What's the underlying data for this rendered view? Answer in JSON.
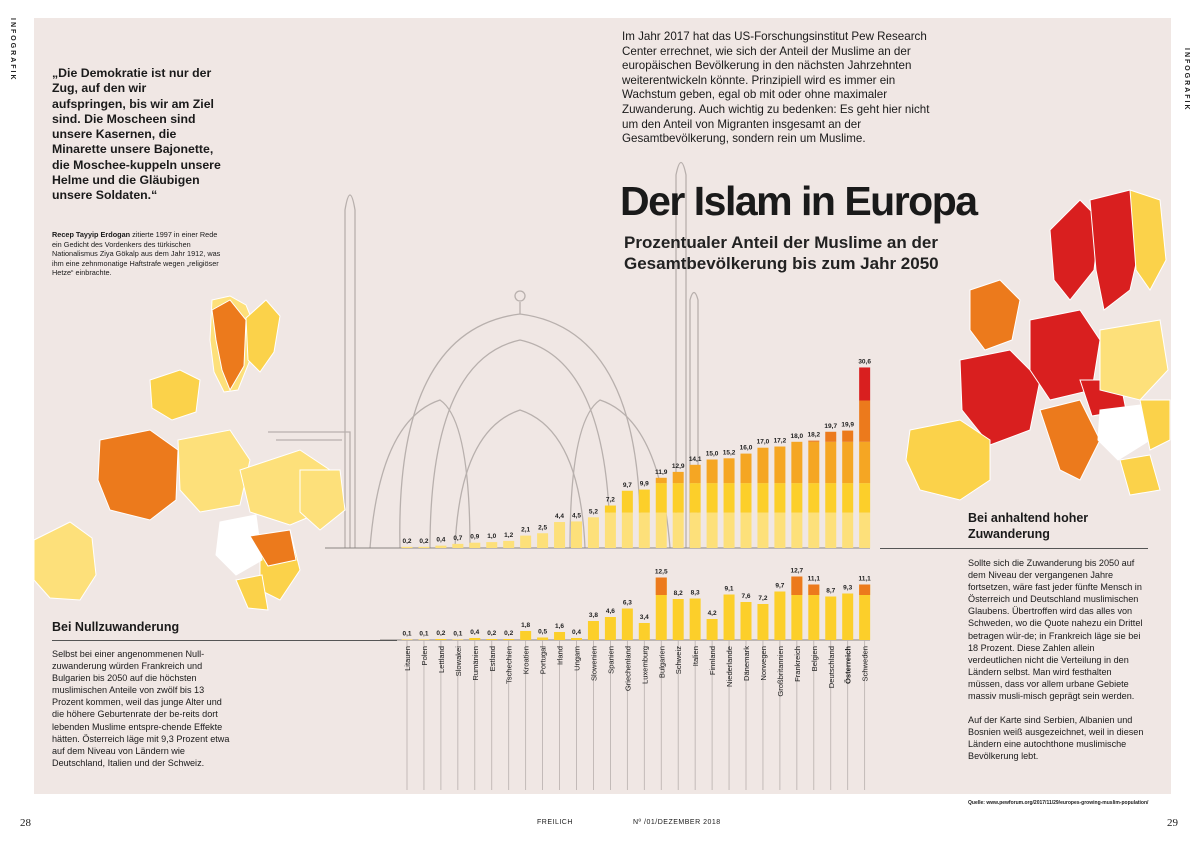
{
  "side_label": "INFOGRAFIK",
  "quote": "„Die Demokratie ist nur der Zug, auf den wir aufspringen, bis wir am Ziel sind. Die Moscheen sind unsere Kasernen, die Minarette unsere Bajonette, die Moschee-kuppeln unsere Helme und die Gläubigen unsere Soldaten.“",
  "quote_source_name": "Recep Tayyip Erdogan",
  "quote_source_text": " zitierte 1997 in einer Rede ein Gedicht des Vordenkers des türkischen Nationalismus Ziya Gökalp aus dem Jahr 1912, was ihm eine zehnmonatige Haftstrafe wegen „religiöser Hetze“ einbrachte.",
  "intro": "Im Jahr 2017 hat das US-Forschungsinstitut Pew Research Center errechnet, wie sich der Anteil der Muslime an der europäischen Bevölkerung in den nächsten Jahrzehnten weiterentwickeln könnte. Prinzipiell wird es immer ein Wachstum geben, egal ob mit oder ohne maximaler Zuwanderung. Auch wichtig zu bedenken: Es geht hier nicht um den Anteil von Migranten insgesamt an der Gesamtbevölkerung, sondern rein um Muslime.",
  "title": "Der Islam in Europa",
  "subtitle": "Prozentualer Anteil der Muslime an der Gesamtbevölkerung bis zum Jahr 2050",
  "section_zero": {
    "heading": "Bei Nullzuwanderung",
    "text": "Selbst bei einer angenommenen Null-zuwanderung würden Frankreich und Bulgarien bis 2050 auf die höchsten muslimischen Anteile von zwölf bis 13 Prozent kommen, weil das junge Alter und die höhere Geburtenrate der be-reits dort lebenden Muslime entspre-chende Effekte hätten. Österreich läge mit 9,3 Prozent etwa auf dem Niveau von Ländern wie Deutschland, Italien und der Schweiz."
  },
  "section_high": {
    "heading": "Bei anhaltend hoher Zuwanderung",
    "text1": "Sollte sich die Zuwanderung bis 2050 auf dem Niveau der vergangenen Jahre fortsetzen, wäre fast jeder fünfte Mensch in Österreich und Deutschland muslimischen Glaubens. Übertroffen wird das alles von Schweden, wo die Quote nahezu ein Drittel betragen wür-de; in Frankreich läge sie bei 18 Prozent. Diese Zahlen allein verdeutlichen nicht die Verteilung in den Ländern selbst. Man wird festhalten müssen, dass vor allem urbane Gebiete massiv musli-misch geprägt sein werden.",
    "text2": "Auf der Karte sind Serbien, Albanien und Bosnien weiß ausgezeichnet, weil in diesen Ländern eine autochthone muslimische Bevölkerung lebt."
  },
  "footer": {
    "page_left": "28",
    "page_right": "29",
    "magazine": "FREILICH",
    "issue": "Nº /01/DEZEMBER 2018",
    "source": "Quelle: www.pewforum.org/2017/11/29/europes-growing-muslim-population/"
  },
  "colors": {
    "panel": "#f0e7e4",
    "base": "#fccf2a",
    "light": "#fde07a",
    "mid": "#f5a623",
    "orange": "#ec7a1c",
    "red": "#d91f1f",
    "line": "#8a8482"
  },
  "chart_data": {
    "type": "bar",
    "categories": [
      "Litauen",
      "Polen",
      "Lettland",
      "Slowakei",
      "Rumänien",
      "Estland",
      "Tschechien",
      "Kroatien",
      "Portugal",
      "Irland",
      "Ungarn",
      "Slowenien",
      "Spanien",
      "Griechenland",
      "Luxemburg",
      "Bulgarien",
      "Schweiz",
      "Italien",
      "Finnland",
      "Niederlande",
      "Dänemark",
      "Norwegen",
      "Großbritannien",
      "Frankreich",
      "Belgien",
      "Deutschland",
      "Österreich",
      "Schweden"
    ],
    "series": [
      {
        "name": "Bei anhaltend hoher Zuwanderung",
        "values": [
          0.2,
          0.2,
          0.4,
          0.7,
          0.9,
          1.0,
          1.2,
          2.1,
          2.5,
          4.4,
          4.5,
          5.2,
          7.2,
          9.7,
          9.9,
          11.9,
          12.9,
          14.1,
          15.0,
          15.2,
          16.0,
          17.0,
          17.2,
          18.0,
          18.2,
          19.7,
          19.9,
          30.6
        ],
        "labels": [
          "0,2",
          "0,2",
          "0,4",
          "0,7",
          "0,9",
          "1,0",
          "1,2",
          "2,1",
          "2,5",
          "4,4",
          "4,5",
          "5,2",
          "7,2",
          "9,7",
          "9,9",
          "11,9",
          "12,9",
          "14,1",
          "15,0",
          "15,2",
          "16,0",
          "17,0",
          "17,2",
          "18,0",
          "18,2",
          "19,7",
          "19,9",
          "30,6"
        ]
      },
      {
        "name": "Bei Nullzuwanderung",
        "values": [
          0.1,
          0.1,
          0.2,
          0.1,
          0.4,
          0.2,
          0.2,
          1.8,
          0.5,
          1.6,
          0.4,
          3.8,
          4.6,
          6.3,
          3.4,
          12.5,
          8.2,
          8.3,
          4.2,
          9.1,
          7.6,
          7.2,
          9.7,
          12.7,
          11.1,
          8.7,
          9.3,
          11.1
        ],
        "labels": [
          "0,1",
          "0,1",
          "0,2",
          "0,1",
          "0,4",
          "0,2",
          "0,2",
          "1,8",
          "0,5",
          "1,6",
          "0,4",
          "3,8",
          "4,6",
          "6,3",
          "3,4",
          "12,5",
          "8,2",
          "8,3",
          "4,2",
          "9,1",
          "7,6",
          "7,2",
          "9,7",
          "12,7",
          "11,1",
          "8,7",
          "9,3",
          "11,1"
        ]
      }
    ],
    "highlight": "Österreich"
  }
}
